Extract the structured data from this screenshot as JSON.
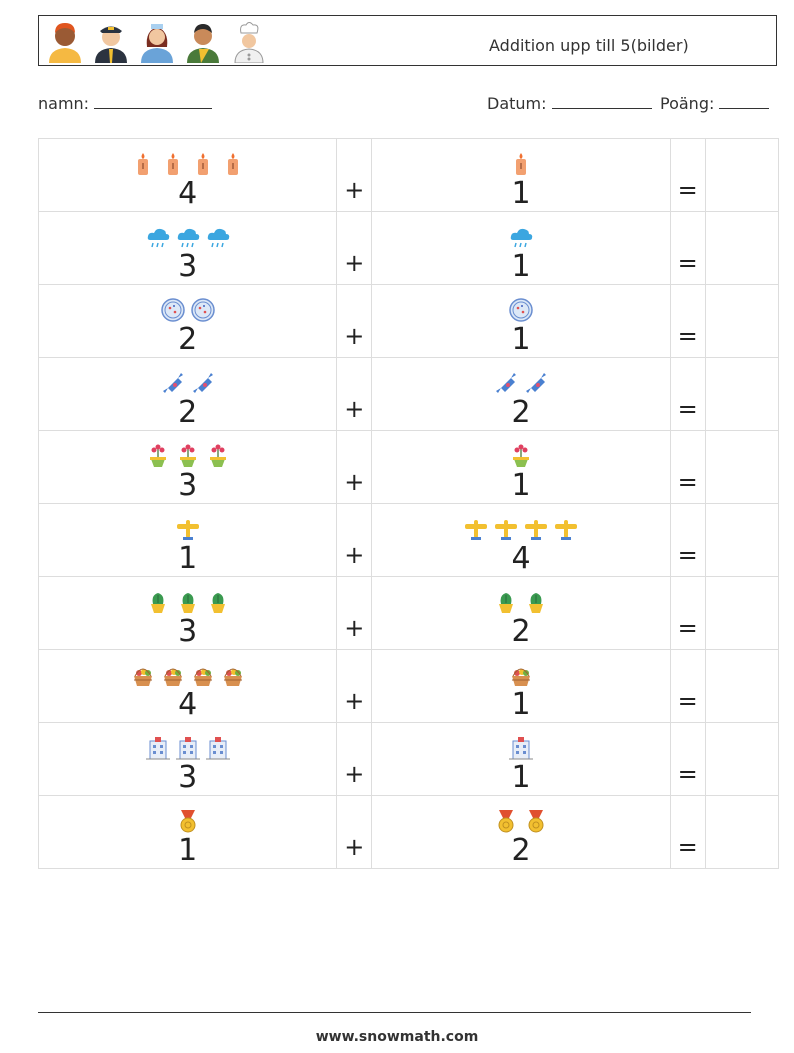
{
  "header": {
    "title": "Addition upp till 5(bilder)",
    "avatars": [
      "man-avatar",
      "pilot-avatar",
      "nurse-avatar",
      "coach-avatar",
      "chef-avatar"
    ]
  },
  "fields": {
    "name_label": "namn:",
    "date_label": "Datum:",
    "score_label": "Poäng:"
  },
  "operators": {
    "plus": "+",
    "equals": "="
  },
  "problems": [
    {
      "a": "4",
      "b": "1",
      "icon": "candles-icon"
    },
    {
      "a": "3",
      "b": "1",
      "icon": "rain-cloud-icon"
    },
    {
      "a": "2",
      "b": "1",
      "icon": "petri-dish-icon"
    },
    {
      "a": "2",
      "b": "2",
      "icon": "candy-icon"
    },
    {
      "a": "3",
      "b": "1",
      "icon": "flower-pot-icon"
    },
    {
      "a": "1",
      "b": "4",
      "icon": "airplane-icon"
    },
    {
      "a": "3",
      "b": "2",
      "icon": "plant-pot-icon"
    },
    {
      "a": "4",
      "b": "1",
      "icon": "basket-icon"
    },
    {
      "a": "3",
      "b": "1",
      "icon": "hospital-icon"
    },
    {
      "a": "1",
      "b": "2",
      "icon": "medal-icon"
    }
  ],
  "footer": {
    "url": "www.snowmath.com"
  }
}
